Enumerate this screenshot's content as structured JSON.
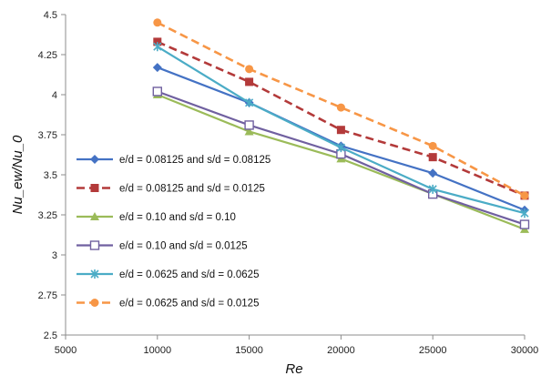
{
  "chart_data": {
    "type": "line",
    "xlabel": "Re",
    "ylabel": "Nu_ew/Nu_0",
    "xlim": [
      5000,
      30000
    ],
    "ylim": [
      2.5,
      4.5
    ],
    "x_ticks": [
      "5000",
      "10000",
      "15000",
      "20000",
      "25000",
      "30000"
    ],
    "y_ticks": [
      "2.5",
      "2.75",
      "3",
      "3.25",
      "3.5",
      "3.75",
      "4",
      "4.25",
      "4.5"
    ],
    "grid": false,
    "legend_position": "left-center",
    "x": [
      10000,
      15000,
      20000,
      25000,
      30000
    ],
    "series": [
      {
        "name": "e/d = 0.08125 and s/d = 0.08125",
        "values": [
          4.17,
          3.95,
          3.68,
          3.51,
          3.28
        ],
        "color": "#4472c4",
        "dash": "solid",
        "marker": "diamond"
      },
      {
        "name": "e/d = 0.08125 and s/d = 0.0125",
        "values": [
          4.33,
          4.08,
          3.78,
          3.61,
          3.37
        ],
        "color": "#b33a3a",
        "dash": "dashed",
        "marker": "square"
      },
      {
        "name": "e/d = 0.10 and s/d = 0.10",
        "values": [
          4.0,
          3.77,
          3.6,
          3.38,
          3.16
        ],
        "color": "#9bbb59",
        "dash": "solid",
        "marker": "triangle"
      },
      {
        "name": "e/d = 0.10 and s/d = 0.0125",
        "values": [
          4.02,
          3.81,
          3.63,
          3.38,
          3.19
        ],
        "color": "#7060a0",
        "dash": "solid",
        "marker": "open-square"
      },
      {
        "name": "e/d = 0.0625 and s/d = 0.0625",
        "values": [
          4.3,
          3.95,
          3.67,
          3.41,
          3.26
        ],
        "color": "#4bacc6",
        "dash": "solid",
        "marker": "star"
      },
      {
        "name": "e/d = 0.0625 and s/d = 0.0125",
        "values": [
          4.45,
          4.16,
          3.92,
          3.68,
          3.37
        ],
        "color": "#f79646",
        "dash": "dashed",
        "marker": "circle"
      }
    ]
  }
}
